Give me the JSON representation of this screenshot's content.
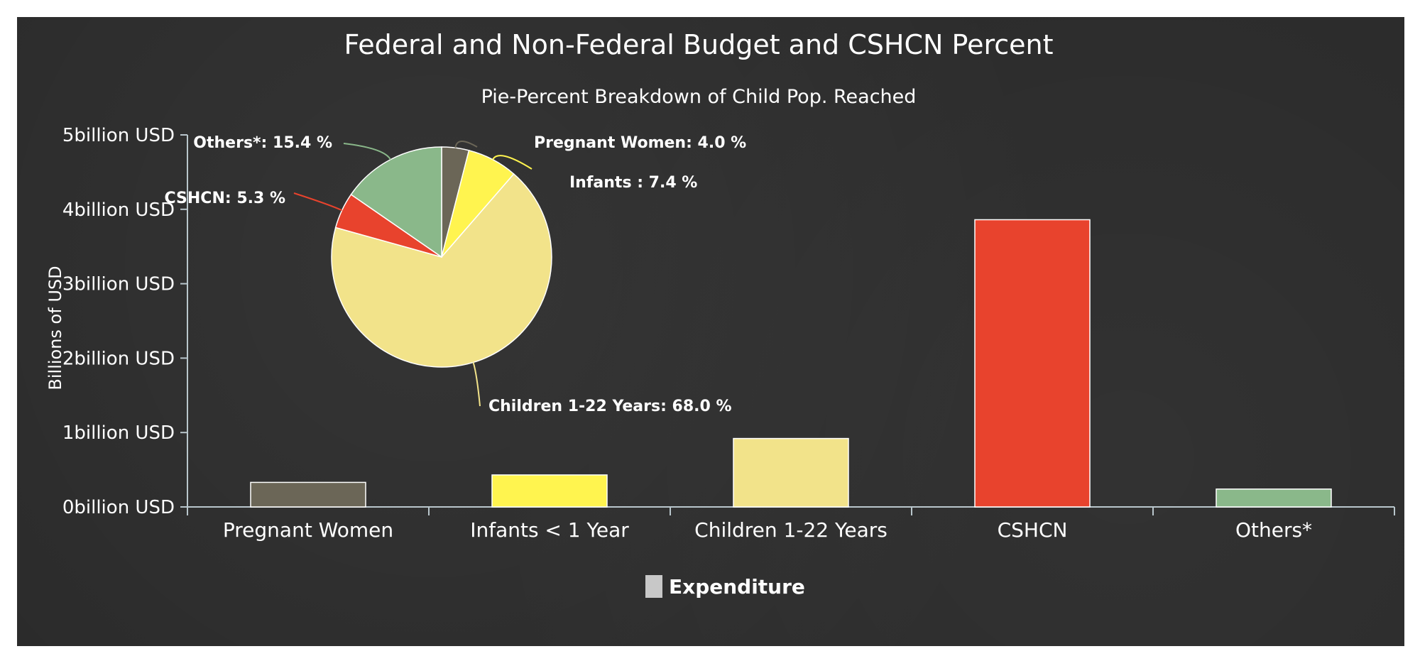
{
  "colors": {
    "background": "#2a2a2a",
    "axis": "#b9c6cc",
    "text": "#ffffff",
    "pregnant": "#6b6657",
    "infants": "#fff44f",
    "children": "#f2e38a",
    "cshcn": "#e8432d",
    "others": "#8ab88a",
    "legend_swatch": "#c8c8c8"
  },
  "chart_data": [
    {
      "type": "bar",
      "title": "Federal and Non-Federal Budget and CSHCN Percent",
      "subtitle": "Pie-Percent Breakdown of Child Pop. Reached",
      "ylabel": "Billions of USD",
      "xlabel": "",
      "categories": [
        "Pregnant Women",
        "Infants < 1 Year",
        "Children 1-22 Years",
        "CSHCN",
        "Others*"
      ],
      "series": [
        {
          "name": "Expenditure",
          "values": [
            0.33,
            0.43,
            0.92,
            3.86,
            0.24
          ]
        }
      ],
      "ylim": [
        0,
        5
      ],
      "yticks": [
        0,
        1,
        2,
        3,
        4,
        5
      ],
      "ytick_labels": [
        "0billion USD",
        "1billion USD",
        "2billion USD",
        "3billion USD",
        "4billion USD",
        "5billion USD"
      ],
      "grid": false,
      "legend": "bottom-center"
    },
    {
      "type": "pie",
      "slices": [
        {
          "label": "Pregnant Women",
          "value": 4.0,
          "text": "Pregnant Women: 4.0 %"
        },
        {
          "label": "Infants ",
          "value": 7.4,
          "text": "Infants : 7.4 %"
        },
        {
          "label": "Children 1-22 Years",
          "value": 68.0,
          "text": "Children 1-22 Years: 68.0 %"
        },
        {
          "label": "CSHCN",
          "value": 5.3,
          "text": "CSHCN: 5.3 %"
        },
        {
          "label": "Others*",
          "value": 15.4,
          "text": "Others*: 15.4 %"
        }
      ]
    }
  ]
}
